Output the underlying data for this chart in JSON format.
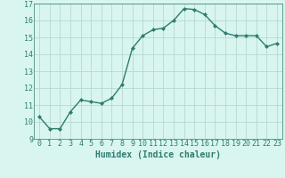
{
  "x": [
    0,
    1,
    2,
    3,
    4,
    5,
    6,
    7,
    8,
    9,
    10,
    11,
    12,
    13,
    14,
    15,
    16,
    17,
    18,
    19,
    20,
    21,
    22,
    23
  ],
  "y": [
    10.3,
    9.6,
    9.6,
    10.6,
    11.3,
    11.2,
    11.1,
    11.4,
    12.2,
    14.35,
    15.1,
    15.45,
    15.55,
    16.0,
    16.7,
    16.65,
    16.35,
    15.7,
    15.25,
    15.1,
    15.1,
    15.1,
    14.45,
    14.65
  ],
  "line_color": "#2e7d6e",
  "marker": "D",
  "marker_size": 2,
  "bg_color": "#d8f5f0",
  "grid_color": "#b8d8d0",
  "xlabel": "Humidex (Indice chaleur)",
  "xlim": [
    -0.5,
    23.5
  ],
  "ylim": [
    9.0,
    17.0
  ],
  "yticks": [
    9,
    10,
    11,
    12,
    13,
    14,
    15,
    16,
    17
  ],
  "xticks": [
    0,
    1,
    2,
    3,
    4,
    5,
    6,
    7,
    8,
    9,
    10,
    11,
    12,
    13,
    14,
    15,
    16,
    17,
    18,
    19,
    20,
    21,
    22,
    23
  ],
  "xlabel_fontsize": 7,
  "tick_fontsize": 6,
  "line_width": 1.0
}
